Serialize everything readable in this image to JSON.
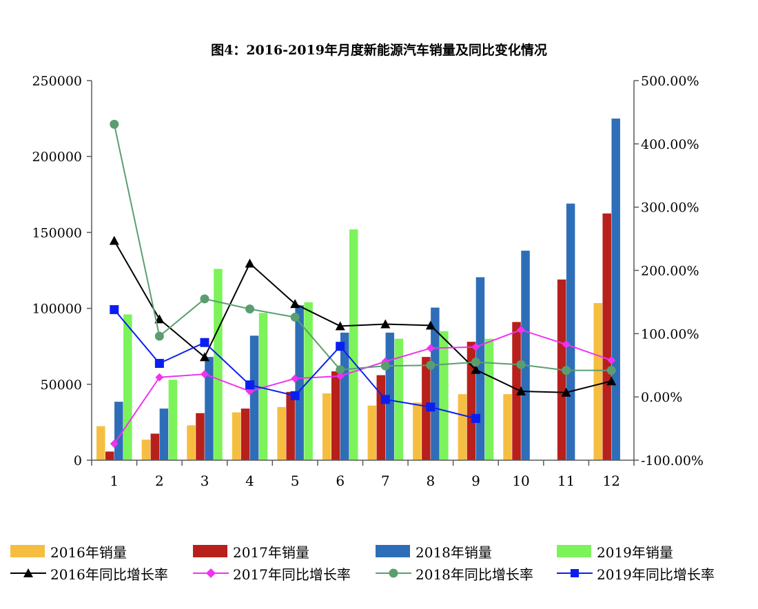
{
  "chart_data": {
    "type": "bar",
    "title": "图4：2016-2019年月度新能源汽车销量及同比变化情况",
    "categories": [
      "1",
      "2",
      "3",
      "4",
      "5",
      "6",
      "7",
      "8",
      "9",
      "10",
      "11",
      "12"
    ],
    "y_left": {
      "min": 0,
      "max": 250000,
      "ticks": [
        "0",
        "50000",
        "100000",
        "150000",
        "200000",
        "250000"
      ]
    },
    "y_right": {
      "min": -1.0,
      "max": 5.0,
      "ticks": [
        "-100.00%",
        "0.00%",
        "100.00%",
        "200.00%",
        "300.00%",
        "400.00%",
        "500.00%"
      ]
    },
    "bar_series": [
      {
        "name": "2016年销量",
        "color": "#F6BE41",
        "values": [
          22400,
          13500,
          23000,
          31500,
          35000,
          44000,
          36000,
          38000,
          43500,
          43500,
          null,
          103500
        ]
      },
      {
        "name": "2017年销量",
        "color": "#B7201B",
        "values": [
          5700,
          17500,
          31000,
          34000,
          45000,
          58500,
          56000,
          68000,
          78000,
          91000,
          119000,
          162500
        ]
      },
      {
        "name": "2018年销量",
        "color": "#2E6EB8",
        "values": [
          38500,
          34000,
          68000,
          82000,
          102000,
          84000,
          84000,
          100500,
          120500,
          138000,
          169000,
          225000
        ]
      },
      {
        "name": "2019年销量",
        "color": "#7CF35A",
        "values": [
          96000,
          53000,
          126000,
          97000,
          104000,
          152000,
          80000,
          85000,
          80000,
          null,
          null,
          null
        ]
      }
    ],
    "line_series": [
      {
        "name": "2016年同比增长率",
        "color": "#000000",
        "marker": "triangle",
        "values": [
          2.47,
          1.23,
          0.63,
          2.11,
          1.47,
          1.12,
          1.15,
          1.13,
          0.43,
          0.09,
          0.07,
          0.25
        ]
      },
      {
        "name": "2017年同比增长率",
        "color": "#F032F0",
        "marker": "diamond",
        "values": [
          -0.74,
          0.31,
          0.36,
          0.09,
          0.29,
          0.33,
          0.56,
          0.77,
          0.79,
          1.06,
          0.83,
          0.58
        ]
      },
      {
        "name": "2018年同比增长率",
        "color": "#5A9E6F",
        "marker": "circle",
        "values": [
          4.31,
          0.96,
          1.55,
          1.39,
          1.26,
          0.43,
          0.49,
          0.5,
          0.55,
          0.51,
          0.42,
          0.42
        ]
      },
      {
        "name": "2019年同比增长率",
        "color": "#0B1EF0",
        "marker": "square",
        "values": [
          1.38,
          0.53,
          0.86,
          0.19,
          0.02,
          0.8,
          -0.04,
          -0.16,
          -0.34,
          null,
          null,
          null
        ]
      }
    ]
  }
}
